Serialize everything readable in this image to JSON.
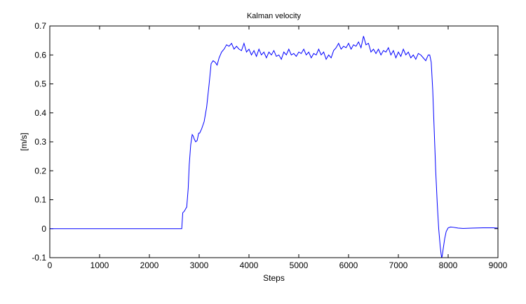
{
  "chart_data": {
    "type": "line",
    "title": "Kalman velocity",
    "xlabel": "Steps",
    "ylabel": "[m/s]",
    "xlim": [
      0,
      9000
    ],
    "ylim": [
      -0.1,
      0.7
    ],
    "xticks": [
      0,
      1000,
      2000,
      3000,
      4000,
      5000,
      6000,
      7000,
      8000,
      9000
    ],
    "yticks": [
      -0.1,
      0,
      0.1,
      0.2,
      0.3,
      0.4,
      0.5,
      0.6,
      0.7
    ],
    "grid": false,
    "line_color": "#0000ff",
    "series": [
      {
        "x": [
          0,
          1000,
          2000,
          2650,
          2670,
          2700,
          2750,
          2780,
          2800,
          2830,
          2860,
          2880,
          2900,
          2930,
          2960,
          2990,
          3010,
          3050,
          3100,
          3150,
          3200,
          3240,
          3280,
          3320,
          3360,
          3400,
          3450,
          3500,
          3550,
          3600,
          3650,
          3700,
          3750,
          3800,
          3850,
          3900,
          3950,
          4000,
          4050,
          4100,
          4150,
          4200,
          4250,
          4300,
          4350,
          4400,
          4450,
          4500,
          4550,
          4600,
          4650,
          4700,
          4750,
          4800,
          4850,
          4900,
          4950,
          5000,
          5050,
          5100,
          5150,
          5200,
          5250,
          5300,
          5350,
          5400,
          5450,
          5500,
          5550,
          5600,
          5650,
          5700,
          5750,
          5800,
          5850,
          5900,
          5950,
          6000,
          6050,
          6100,
          6150,
          6200,
          6250,
          6300,
          6350,
          6400,
          6450,
          6500,
          6550,
          6600,
          6650,
          6700,
          6750,
          6800,
          6850,
          6900,
          6950,
          7000,
          7050,
          7100,
          7150,
          7200,
          7250,
          7300,
          7350,
          7400,
          7450,
          7500,
          7550,
          7600,
          7630,
          7660,
          7690,
          7720,
          7750,
          7780,
          7810,
          7840,
          7860,
          7870,
          7880,
          7900,
          7930,
          7960,
          8000,
          8050,
          8100,
          8200,
          8300,
          8500,
          8700,
          8900,
          9000
        ],
        "y": [
          0,
          0,
          0,
          0,
          0.055,
          0.06,
          0.075,
          0.14,
          0.22,
          0.29,
          0.325,
          0.32,
          0.31,
          0.3,
          0.305,
          0.33,
          0.33,
          0.345,
          0.37,
          0.42,
          0.5,
          0.57,
          0.58,
          0.575,
          0.565,
          0.59,
          0.61,
          0.62,
          0.635,
          0.63,
          0.64,
          0.62,
          0.63,
          0.62,
          0.615,
          0.64,
          0.61,
          0.62,
          0.6,
          0.615,
          0.595,
          0.62,
          0.6,
          0.61,
          0.59,
          0.61,
          0.6,
          0.615,
          0.595,
          0.6,
          0.585,
          0.61,
          0.6,
          0.62,
          0.6,
          0.605,
          0.595,
          0.61,
          0.605,
          0.62,
          0.6,
          0.61,
          0.59,
          0.605,
          0.6,
          0.62,
          0.6,
          0.61,
          0.585,
          0.6,
          0.59,
          0.615,
          0.625,
          0.64,
          0.62,
          0.63,
          0.625,
          0.64,
          0.62,
          0.635,
          0.63,
          0.645,
          0.625,
          0.665,
          0.635,
          0.64,
          0.61,
          0.62,
          0.605,
          0.62,
          0.6,
          0.615,
          0.61,
          0.625,
          0.6,
          0.615,
          0.59,
          0.61,
          0.595,
          0.62,
          0.6,
          0.61,
          0.59,
          0.6,
          0.585,
          0.605,
          0.6,
          0.59,
          0.58,
          0.6,
          0.6,
          0.575,
          0.48,
          0.34,
          0.2,
          0.09,
          0.0,
          -0.06,
          -0.09,
          -0.1,
          -0.095,
          -0.07,
          -0.035,
          -0.01,
          0.003,
          0.006,
          0.005,
          0.002,
          0.001,
          0.002,
          0.003,
          0.003,
          0.002
        ]
      }
    ]
  }
}
